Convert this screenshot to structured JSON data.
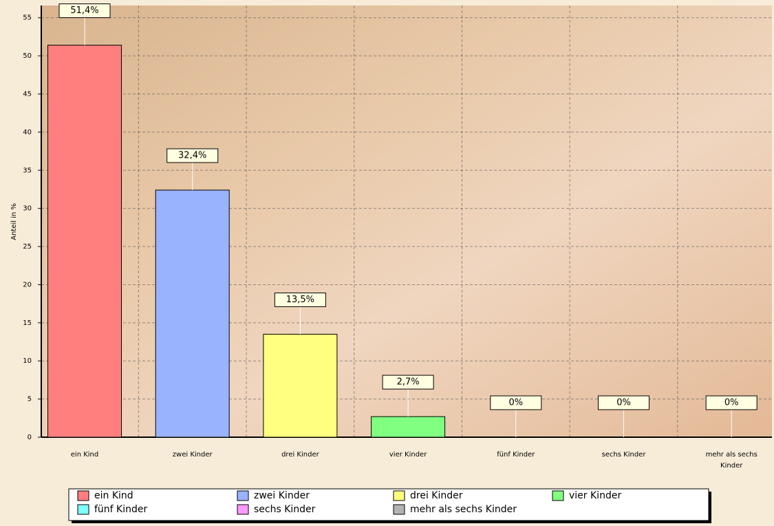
{
  "chart_data": {
    "type": "bar",
    "ylabel": "Anteil in %",
    "categories": [
      "ein Kind",
      "zwei Kinder",
      "drei Kinder",
      "vier Kinder",
      "fünf Kinder",
      "sechs Kinder",
      "mehr als sechs Kinder"
    ],
    "values": [
      51.4,
      32.4,
      13.5,
      2.7,
      0,
      0,
      0
    ],
    "value_labels": [
      "51,4%",
      "32,4%",
      "13,5%",
      "2,7%",
      "0%",
      "0%",
      "0%"
    ],
    "colors": [
      "#ff7f7f",
      "#99b3ff",
      "#ffff80",
      "#80ff80",
      "#80ffff",
      "#ff99ff",
      "#b3b3b3"
    ],
    "ylim": [
      0,
      56.6
    ],
    "yticks": [
      0,
      5,
      10,
      15,
      20,
      25,
      30,
      35,
      40,
      45,
      50,
      55
    ],
    "grid": true
  }
}
